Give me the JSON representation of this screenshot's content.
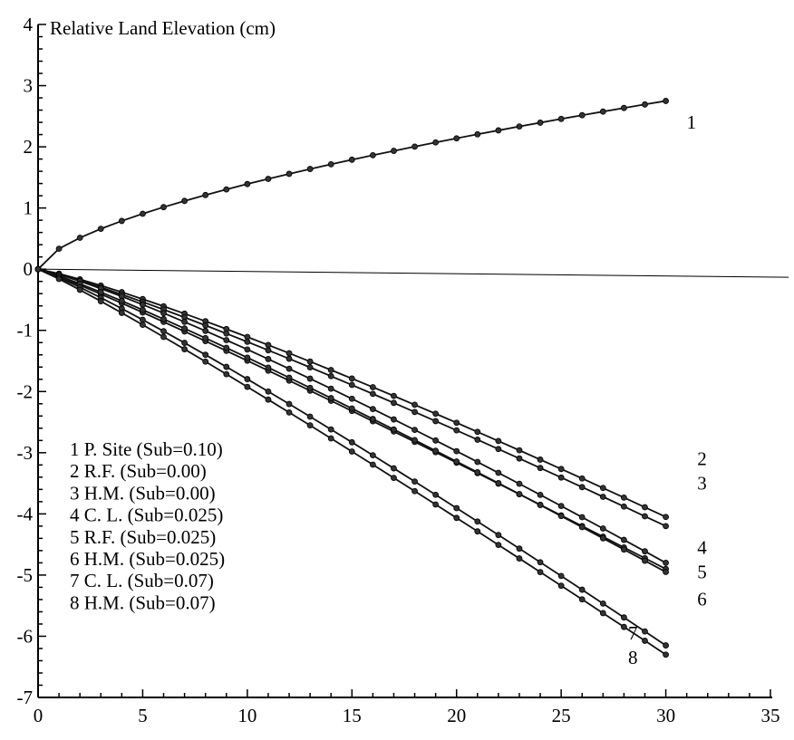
{
  "chart_data": {
    "type": "line",
    "title": "",
    "ylabel": "Relative Land Elevation (cm)",
    "xlabel": "",
    "xlim": [
      0,
      35
    ],
    "ylim": [
      -7,
      4
    ],
    "xticks": [
      0,
      5,
      10,
      15,
      20,
      25,
      30,
      35
    ],
    "yticks": [
      -7,
      -6,
      -5,
      -4,
      -3,
      -2,
      -1,
      0,
      1,
      2,
      3,
      4
    ],
    "grid": false,
    "legend_position": "bottom-left",
    "legend": [
      "1 P. Site (Sub=0.10)",
      "2 R.F. (Sub=0.00)",
      "3 H.M. (Sub=0.00)",
      "4 C. L. (Sub=0.025)",
      "5 R.F. (Sub=0.025)",
      "6 H.M. (Sub=0.025)",
      "7 C. L. (Sub=0.07)",
      "8 H.M. (Sub=0.07)"
    ],
    "series": [
      {
        "label": "1",
        "label_pos": [
          31,
          2.3
        ],
        "model": "pow",
        "end": 2.75,
        "p": 0.62
      },
      {
        "label": "2",
        "label_pos": [
          31.5,
          -3.2
        ],
        "model": "pow",
        "end": -4.05,
        "p": 1.18
      },
      {
        "label": "3",
        "label_pos": [
          31.5,
          -3.6
        ],
        "model": "pow",
        "end": -4.2,
        "p": 1.15
      },
      {
        "label": "4",
        "label_pos": [
          31.5,
          -4.65
        ],
        "model": "pow",
        "end": -4.8,
        "p": 1.18
      },
      {
        "label": "5",
        "label_pos": [
          31.5,
          -5.05
        ],
        "model": "pow",
        "end": -4.9,
        "p": 1.08
      },
      {
        "label": "6",
        "label_pos": [
          31.5,
          -5.5
        ],
        "model": "pow",
        "end": -4.95,
        "p": 1.12
      },
      {
        "label": "7",
        "label_pos": [
          28.2,
          -6.05
        ],
        "model": "pow",
        "end": -6.15,
        "p": 1.12
      },
      {
        "label": "8",
        "label_pos": [
          28.2,
          -6.45
        ],
        "model": "pow",
        "end": -6.3,
        "p": 1.08
      }
    ]
  }
}
